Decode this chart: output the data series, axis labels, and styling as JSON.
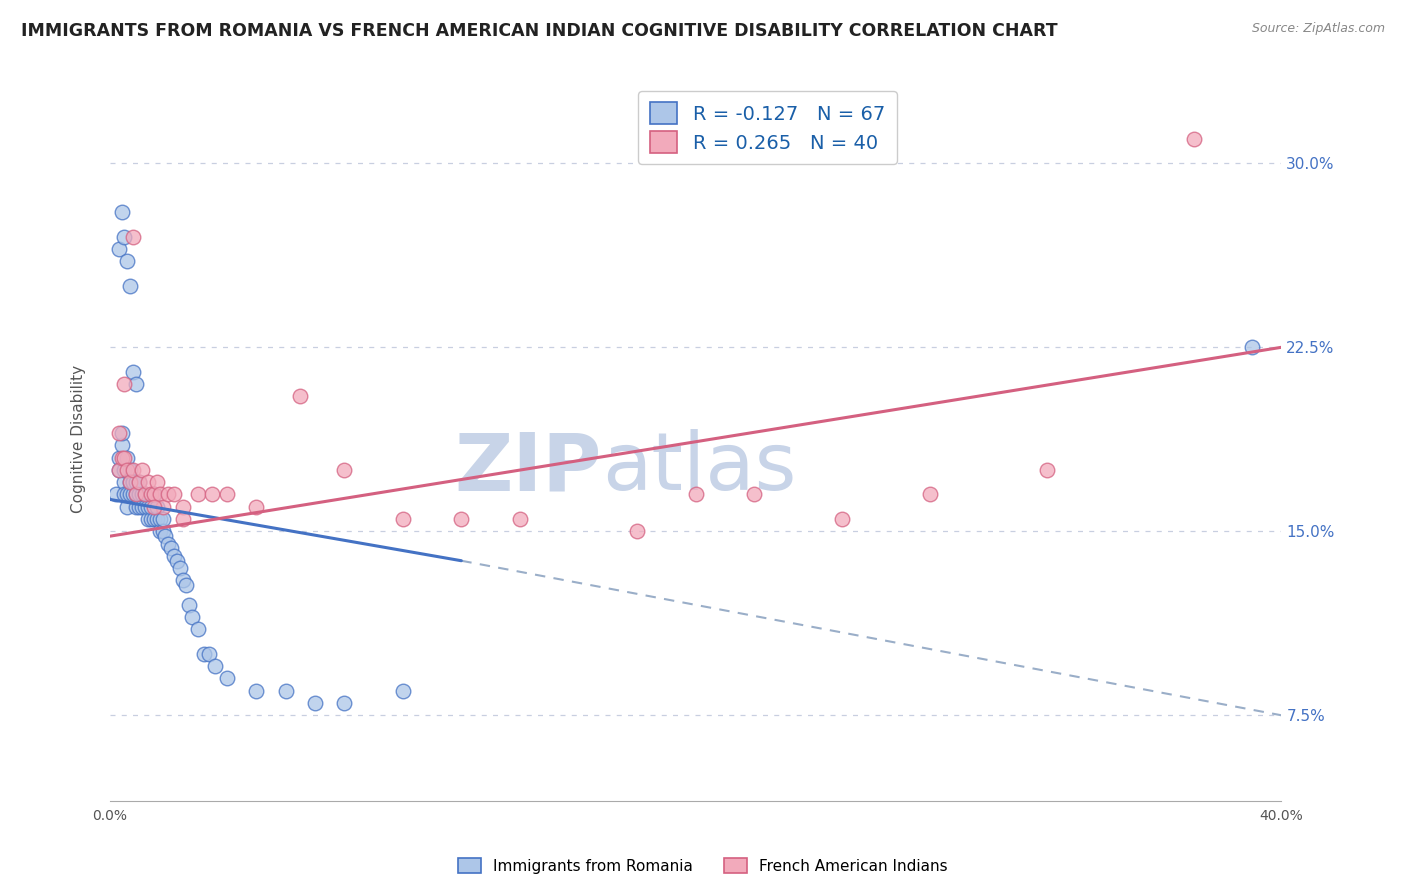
{
  "title": "IMMIGRANTS FROM ROMANIA VS FRENCH AMERICAN INDIAN COGNITIVE DISABILITY CORRELATION CHART",
  "source_text": "Source: ZipAtlas.com",
  "ylabel": "Cognitive Disability",
  "xmin": 0.0,
  "xmax": 0.4,
  "ymin": 0.04,
  "ymax": 0.335,
  "yticks": [
    0.075,
    0.1,
    0.125,
    0.15,
    0.175,
    0.2,
    0.225,
    0.25,
    0.275,
    0.3
  ],
  "ytick_labels": [
    "7.5%",
    "",
    "",
    "15.0%",
    "",
    "",
    "22.5%",
    "",
    "",
    "30.0%"
  ],
  "legend_blue_r": "-0.127",
  "legend_blue_n": "67",
  "legend_pink_r": "0.265",
  "legend_pink_n": "40",
  "blue_color": "#adc6e8",
  "pink_color": "#f2aabb",
  "blue_line_color": "#4472c4",
  "pink_line_color": "#d46080",
  "dashed_line_color": "#9aaec8",
  "watermark_color": "#c8d4e8",
  "blue_scatter_x": [
    0.002,
    0.003,
    0.003,
    0.004,
    0.004,
    0.005,
    0.005,
    0.005,
    0.006,
    0.006,
    0.006,
    0.007,
    0.007,
    0.007,
    0.008,
    0.008,
    0.008,
    0.009,
    0.009,
    0.009,
    0.01,
    0.01,
    0.01,
    0.011,
    0.011,
    0.012,
    0.012,
    0.013,
    0.013,
    0.014,
    0.014,
    0.015,
    0.015,
    0.016,
    0.016,
    0.017,
    0.017,
    0.018,
    0.018,
    0.019,
    0.02,
    0.021,
    0.022,
    0.023,
    0.024,
    0.025,
    0.026,
    0.027,
    0.028,
    0.03,
    0.032,
    0.034,
    0.036,
    0.04,
    0.05,
    0.06,
    0.07,
    0.08,
    0.1,
    0.003,
    0.004,
    0.005,
    0.006,
    0.007,
    0.008,
    0.009,
    0.39
  ],
  "blue_scatter_y": [
    0.165,
    0.18,
    0.175,
    0.185,
    0.19,
    0.17,
    0.175,
    0.165,
    0.18,
    0.165,
    0.16,
    0.175,
    0.17,
    0.165,
    0.17,
    0.165,
    0.17,
    0.165,
    0.17,
    0.16,
    0.165,
    0.16,
    0.17,
    0.165,
    0.16,
    0.165,
    0.16,
    0.155,
    0.16,
    0.155,
    0.16,
    0.155,
    0.165,
    0.155,
    0.16,
    0.15,
    0.155,
    0.15,
    0.155,
    0.148,
    0.145,
    0.143,
    0.14,
    0.138,
    0.135,
    0.13,
    0.128,
    0.12,
    0.115,
    0.11,
    0.1,
    0.1,
    0.095,
    0.09,
    0.085,
    0.085,
    0.08,
    0.08,
    0.085,
    0.265,
    0.28,
    0.27,
    0.26,
    0.25,
    0.215,
    0.21,
    0.225
  ],
  "pink_scatter_x": [
    0.003,
    0.004,
    0.005,
    0.006,
    0.007,
    0.008,
    0.009,
    0.01,
    0.011,
    0.012,
    0.013,
    0.014,
    0.015,
    0.016,
    0.017,
    0.018,
    0.02,
    0.022,
    0.025,
    0.03,
    0.035,
    0.04,
    0.05,
    0.065,
    0.08,
    0.1,
    0.12,
    0.14,
    0.18,
    0.2,
    0.22,
    0.25,
    0.28,
    0.32,
    0.37,
    0.003,
    0.005,
    0.008,
    0.015,
    0.025
  ],
  "pink_scatter_y": [
    0.175,
    0.18,
    0.18,
    0.175,
    0.17,
    0.175,
    0.165,
    0.17,
    0.175,
    0.165,
    0.17,
    0.165,
    0.165,
    0.17,
    0.165,
    0.16,
    0.165,
    0.165,
    0.16,
    0.165,
    0.165,
    0.165,
    0.16,
    0.205,
    0.175,
    0.155,
    0.155,
    0.155,
    0.15,
    0.165,
    0.165,
    0.155,
    0.165,
    0.175,
    0.31,
    0.19,
    0.21,
    0.27,
    0.16,
    0.155
  ],
  "blue_trend_x": [
    0.0,
    0.12
  ],
  "blue_trend_y": [
    0.163,
    0.138
  ],
  "pink_trend_x": [
    0.0,
    0.4
  ],
  "pink_trend_y": [
    0.148,
    0.225
  ],
  "dashed_trend_x": [
    0.12,
    0.4
  ],
  "dashed_trend_y": [
    0.138,
    0.075
  ]
}
